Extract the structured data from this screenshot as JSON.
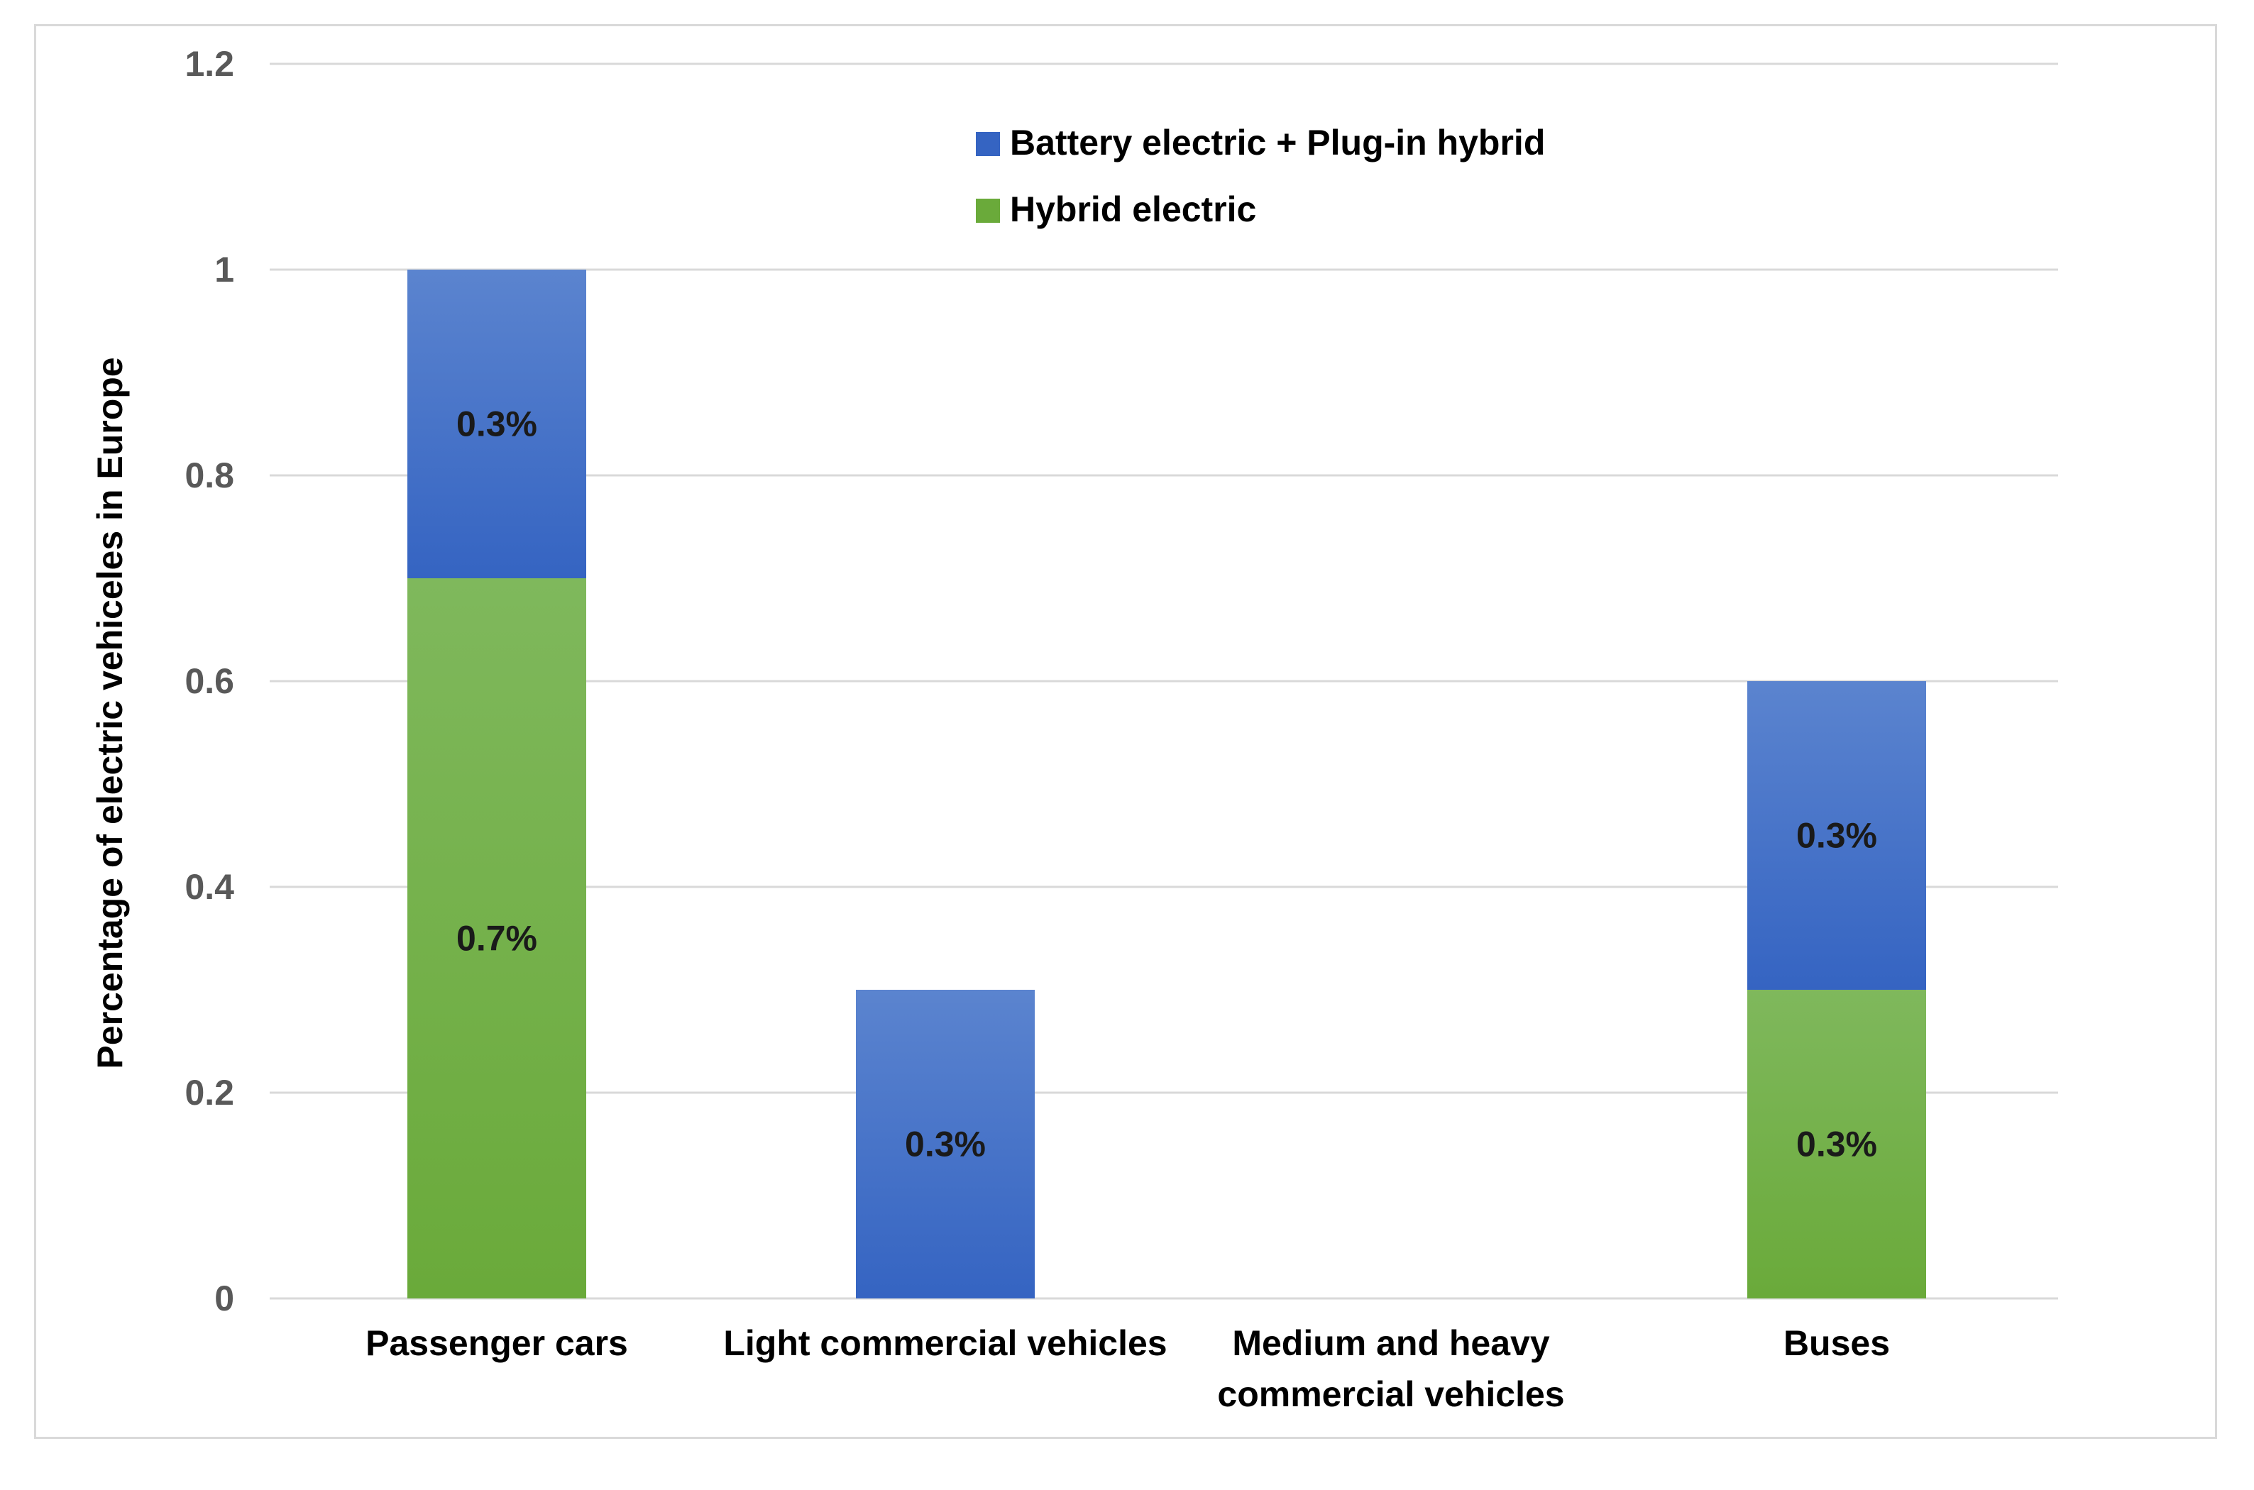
{
  "chart_data": {
    "type": "bar",
    "stacked": true,
    "title": "",
    "xlabel": "",
    "ylabel": "Percentage of electric vehiceles in Europe",
    "ylim": [
      0,
      1.2
    ],
    "yticks": [
      0,
      0.2,
      0.4,
      0.6,
      0.8,
      1,
      1.2
    ],
    "ytick_labels": [
      "0",
      "0.2",
      "0.4",
      "0.6",
      "0.8",
      "1",
      "1.2"
    ],
    "grid": true,
    "legend_position": "top-center",
    "categories": [
      [
        "Passenger cars"
      ],
      [
        "Light commercial vehicles"
      ],
      [
        "Medium and heavy",
        "commercial vehicles"
      ],
      [
        "Buses"
      ]
    ],
    "series": [
      {
        "name": "Hybrid electric",
        "color": "#6aaa3a",
        "color_top": "#7fb85c",
        "values": [
          0.7,
          0,
          0,
          0.3
        ],
        "labels": [
          "0.7%",
          "",
          "",
          "0.3%"
        ]
      },
      {
        "name": "Battery electric + Plug-in hybrid",
        "color": "#3564c2",
        "color_top": "#5b84cf",
        "values": [
          0.3,
          0.3,
          0,
          0.3
        ],
        "labels": [
          "0.3%",
          "0.3%",
          "",
          "0.3%"
        ]
      }
    ],
    "legend_order": [
      1,
      0
    ]
  }
}
